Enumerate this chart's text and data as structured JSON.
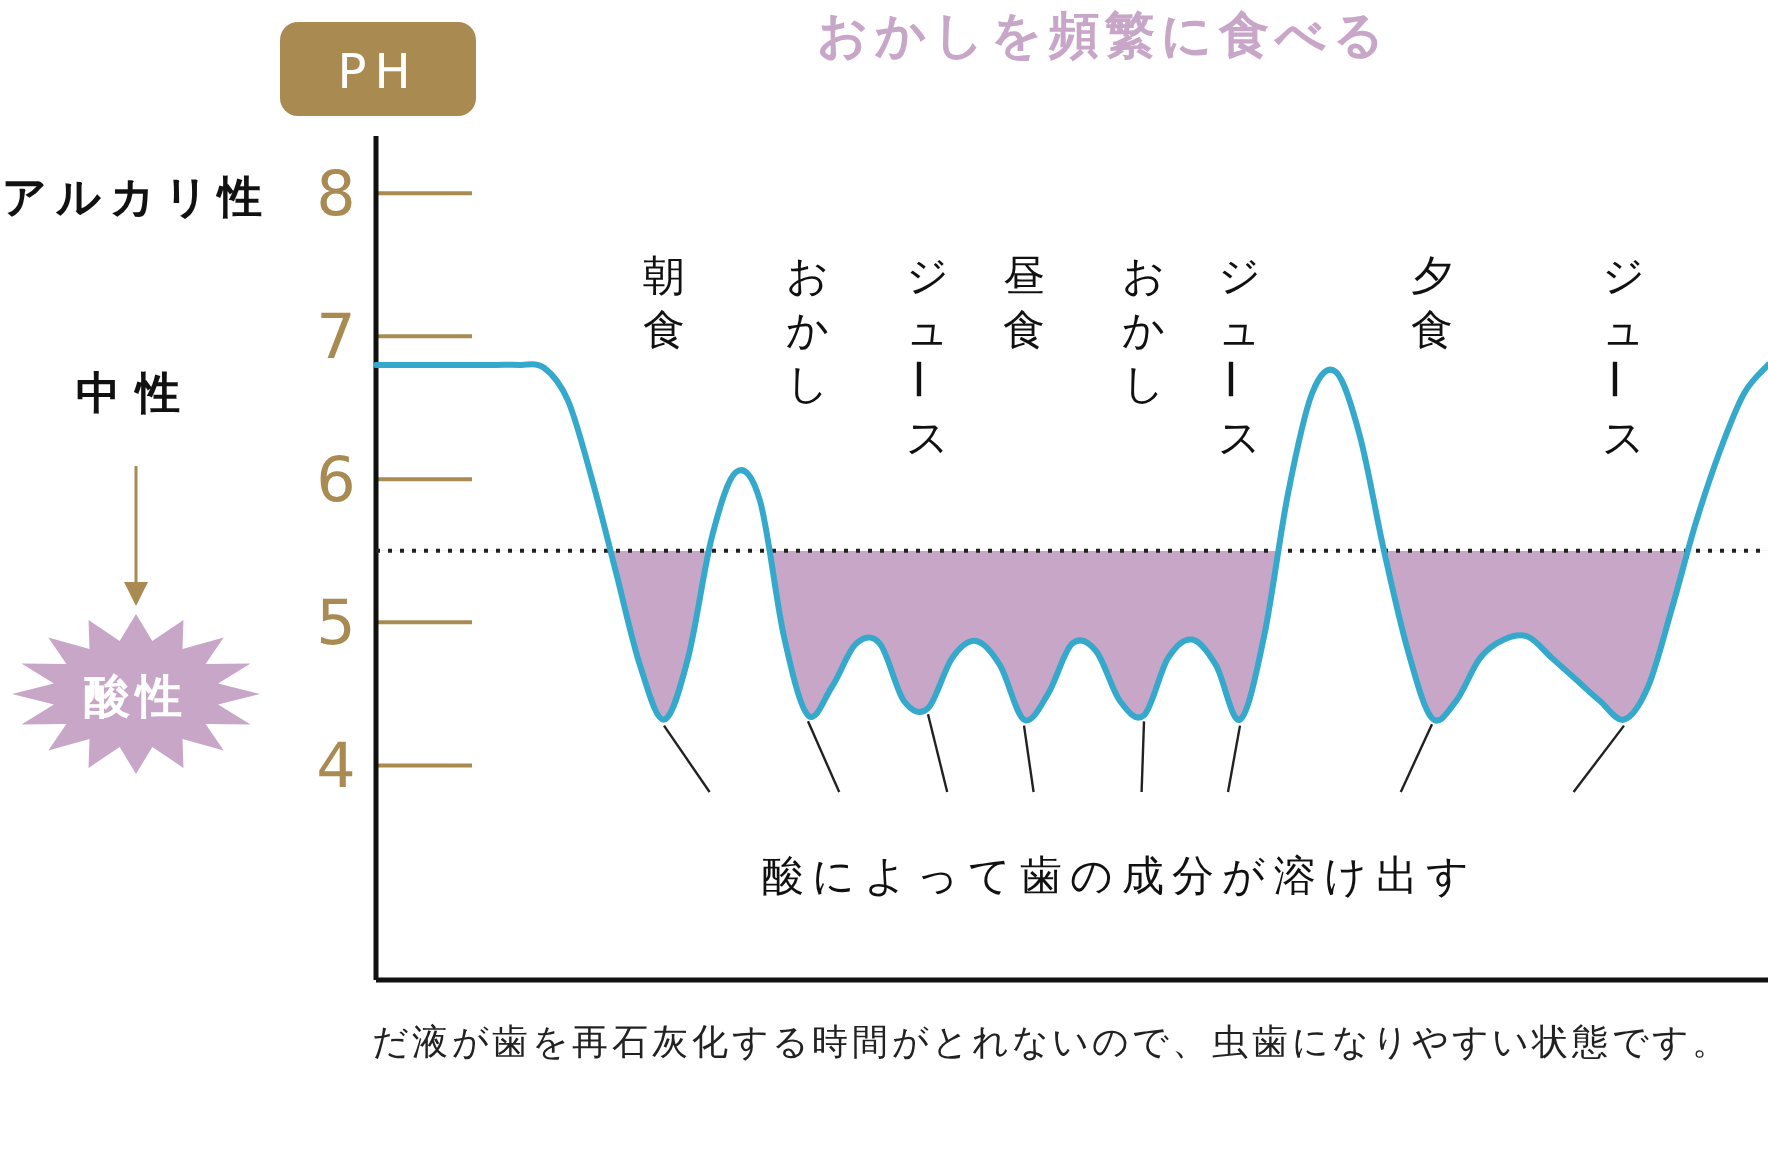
{
  "chart_data": {
    "type": "line",
    "title": "おかしを頻繁に食べる",
    "ylabel": "PH",
    "categories": [
      null,
      null,
      null,
      null,
      null,
      null,
      null,
      null,
      null,
      null,
      null,
      null,
      null,
      null,
      null,
      null,
      null,
      null,
      null,
      null,
      null,
      null,
      null,
      null,
      null,
      null,
      null,
      null,
      null,
      null,
      null,
      null,
      null,
      null,
      null,
      null,
      null,
      null,
      null,
      null,
      null,
      null,
      null,
      null,
      null,
      null,
      null,
      null,
      null,
      null,
      null,
      null,
      null,
      null,
      null,
      null,
      null,
      null,
      null
    ],
    "series": [
      {
        "color": "#35a9cc",
        "values": [
          6.8,
          6.8,
          6.8,
          6.8,
          6.8,
          6.8,
          6.8,
          6.78,
          6.55,
          6.0,
          5.35,
          4.7,
          4.32,
          4.75,
          5.6,
          6.05,
          5.85,
          4.9,
          4.35,
          4.55,
          4.85,
          4.85,
          4.45,
          4.4,
          4.75,
          4.87,
          4.7,
          4.32,
          4.5,
          4.85,
          4.8,
          4.45,
          4.35,
          4.75,
          4.88,
          4.7,
          4.32,
          4.9,
          5.9,
          6.6,
          6.75,
          6.3,
          5.5,
          4.8,
          4.33,
          4.45,
          4.75,
          4.88,
          4.9,
          4.75,
          4.6,
          4.45,
          4.32,
          4.55,
          5.1,
          5.7,
          6.2,
          6.6,
          6.8
        ]
      }
    ],
    "ylim": [
      2.5,
      8.4
    ],
    "yticks": [
      4,
      5,
      6,
      7,
      8
    ],
    "ref_lines": [
      {
        "axis": "y",
        "value": 5.5,
        "color": "#222222",
        "line_style": "dotted"
      }
    ],
    "annotations": [
      "朝食",
      "おかし",
      "ジュース",
      "昼食",
      "おかし",
      "ジュース",
      "夕食",
      "ジュース",
      "酸によって歯の成分が溶け出す",
      "アルカリ性",
      "中性",
      "酸性",
      "だ液が歯を再石灰化する時間がとれないので、虫歯になりやすい状態です。"
    ]
  }
}
